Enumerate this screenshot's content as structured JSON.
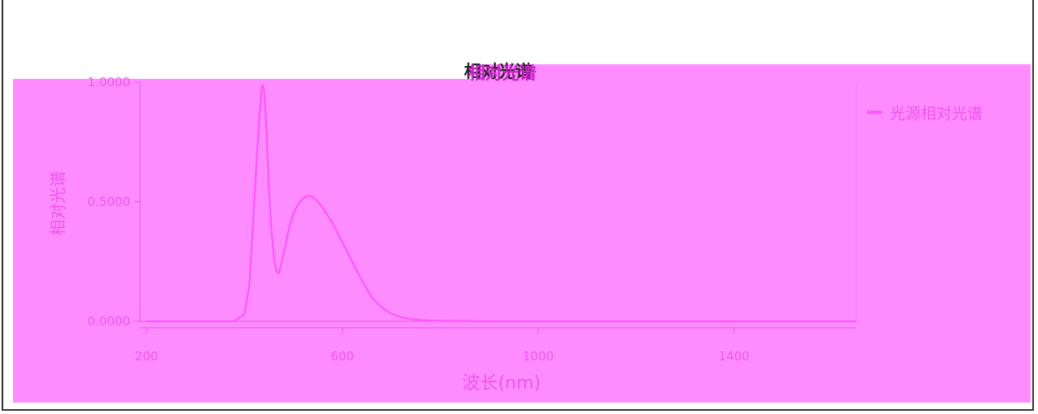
{
  "colors": {
    "overlay": "#ff8cff",
    "series": "#ff55ff",
    "text": "#ee55ee",
    "title": "#cc22cc",
    "title_shadow": "#222222",
    "frame": "#333333"
  },
  "chart_data": {
    "type": "line",
    "title": "相对光谱",
    "xlabel": "波长(nm)",
    "ylabel": "相对光谱",
    "xlim": [
      200,
      1650
    ],
    "ylim": [
      0,
      1
    ],
    "x_ticks": [
      200,
      600,
      1000,
      1400
    ],
    "x_tick_labels": [
      "200",
      "600",
      "1000",
      "1400"
    ],
    "y_ticks": [
      0,
      0.5,
      1
    ],
    "y_tick_labels": [
      "0.0000",
      "0.5000",
      "1.0000"
    ],
    "grid": false,
    "legend": "top-right",
    "series": [
      {
        "name": "光源相对光谱",
        "x": [
          200,
          380,
          400,
          410,
          420,
          430,
          436,
          440,
          445,
          450,
          455,
          460,
          465,
          470,
          480,
          490,
          500,
          510,
          520,
          530,
          540,
          550,
          560,
          580,
          600,
          620,
          640,
          660,
          680,
          700,
          720,
          740,
          760,
          780,
          800,
          850,
          900,
          1000,
          1200,
          1400,
          1650
        ],
        "y": [
          0,
          0,
          0.03,
          0.15,
          0.5,
          0.85,
          0.99,
          0.97,
          0.8,
          0.55,
          0.38,
          0.27,
          0.21,
          0.2,
          0.28,
          0.38,
          0.45,
          0.49,
          0.515,
          0.525,
          0.52,
          0.5,
          0.475,
          0.41,
          0.33,
          0.25,
          0.17,
          0.1,
          0.058,
          0.032,
          0.017,
          0.009,
          0.005,
          0.003,
          0.002,
          0.001,
          0,
          0,
          0,
          0,
          0
        ]
      }
    ]
  }
}
